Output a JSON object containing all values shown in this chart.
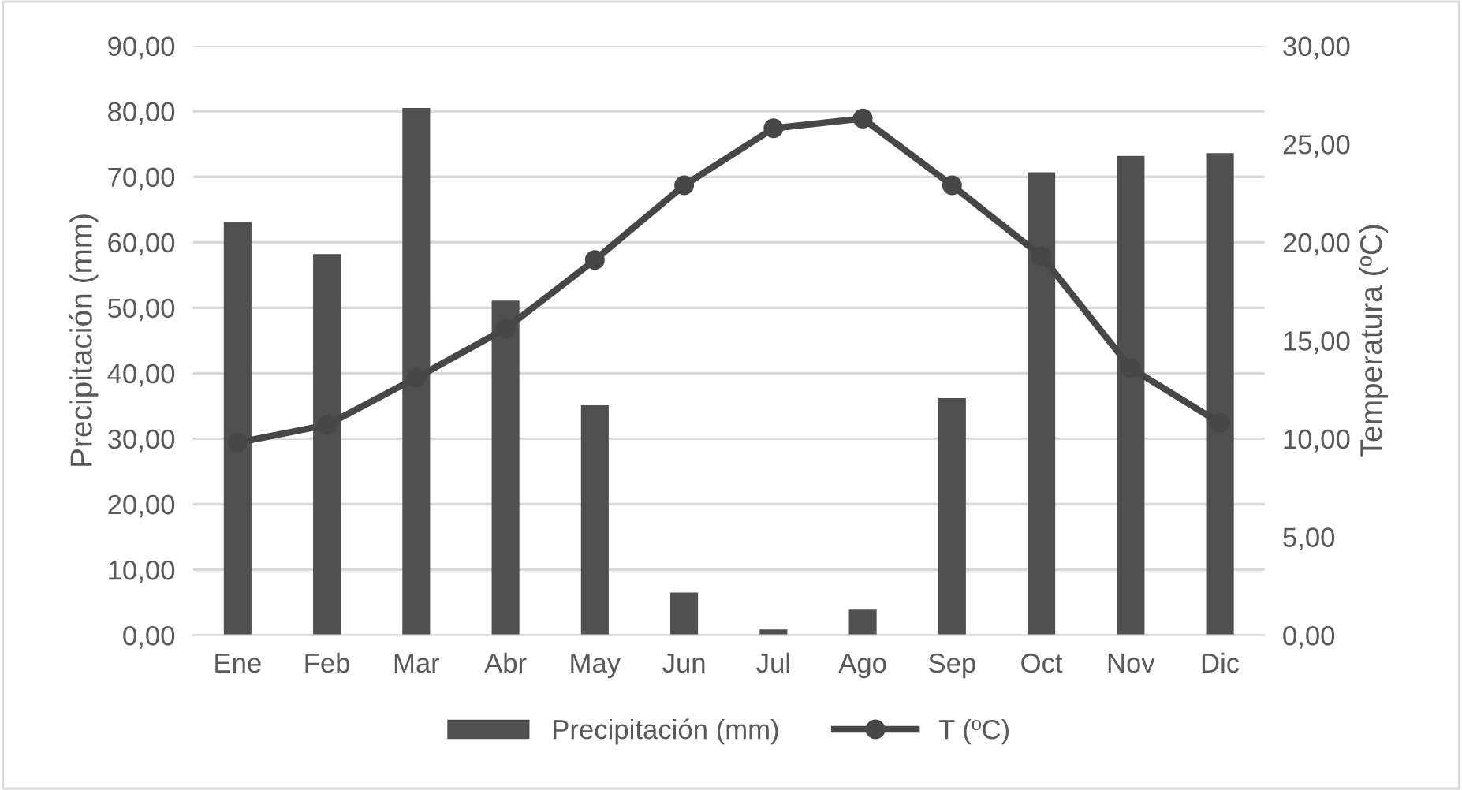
{
  "chart_data": {
    "type": "bar",
    "ylabel": "Precipitación (mm)",
    "y2label": "Temperatura (ºC)",
    "categories": [
      "Ene",
      "Feb",
      "Mar",
      "Abr",
      "May",
      "Jun",
      "Jul",
      "Ago",
      "Sep",
      "Oct",
      "Nov",
      "Dic"
    ],
    "series": [
      {
        "name": "Precipitación (mm)",
        "color": "#505050",
        "values": [
          63.1,
          58.2,
          80.5,
          51.1,
          35.1,
          6.5,
          0.9,
          3.9,
          36.2,
          70.7,
          73.2,
          73.6
        ]
      },
      {
        "name": "T (ºC)",
        "type": "line",
        "axis": "y2",
        "color": "#474747",
        "marker": "circle",
        "values": [
          9.8,
          10.7,
          13.1,
          15.6,
          19.1,
          22.9,
          25.8,
          26.3,
          22.9,
          19.3,
          13.6,
          10.8
        ]
      }
    ],
    "ylim": [
      0,
      90
    ],
    "yticks": [
      {
        "value": 0,
        "label": "0,00"
      },
      {
        "value": 10,
        "label": "10,00"
      },
      {
        "value": 20,
        "label": "20,00"
      },
      {
        "value": 30,
        "label": "30,00"
      },
      {
        "value": 40,
        "label": "40,00"
      },
      {
        "value": 50,
        "label": "50,00"
      },
      {
        "value": 60,
        "label": "60,00"
      },
      {
        "value": 70,
        "label": "70,00"
      },
      {
        "value": 80,
        "label": "80,00"
      },
      {
        "value": 90,
        "label": "90,00"
      }
    ],
    "y2lim": [
      0,
      30
    ],
    "y2ticks": [
      {
        "value": 0,
        "label": "0,00"
      },
      {
        "value": 5,
        "label": "5,00"
      },
      {
        "value": 10,
        "label": "10,00"
      },
      {
        "value": 15,
        "label": "15,00"
      },
      {
        "value": 20,
        "label": "20,00"
      },
      {
        "value": 25,
        "label": "25,00"
      },
      {
        "value": 30,
        "label": "30,00"
      }
    ],
    "grid": "y",
    "legend": "bottom"
  }
}
